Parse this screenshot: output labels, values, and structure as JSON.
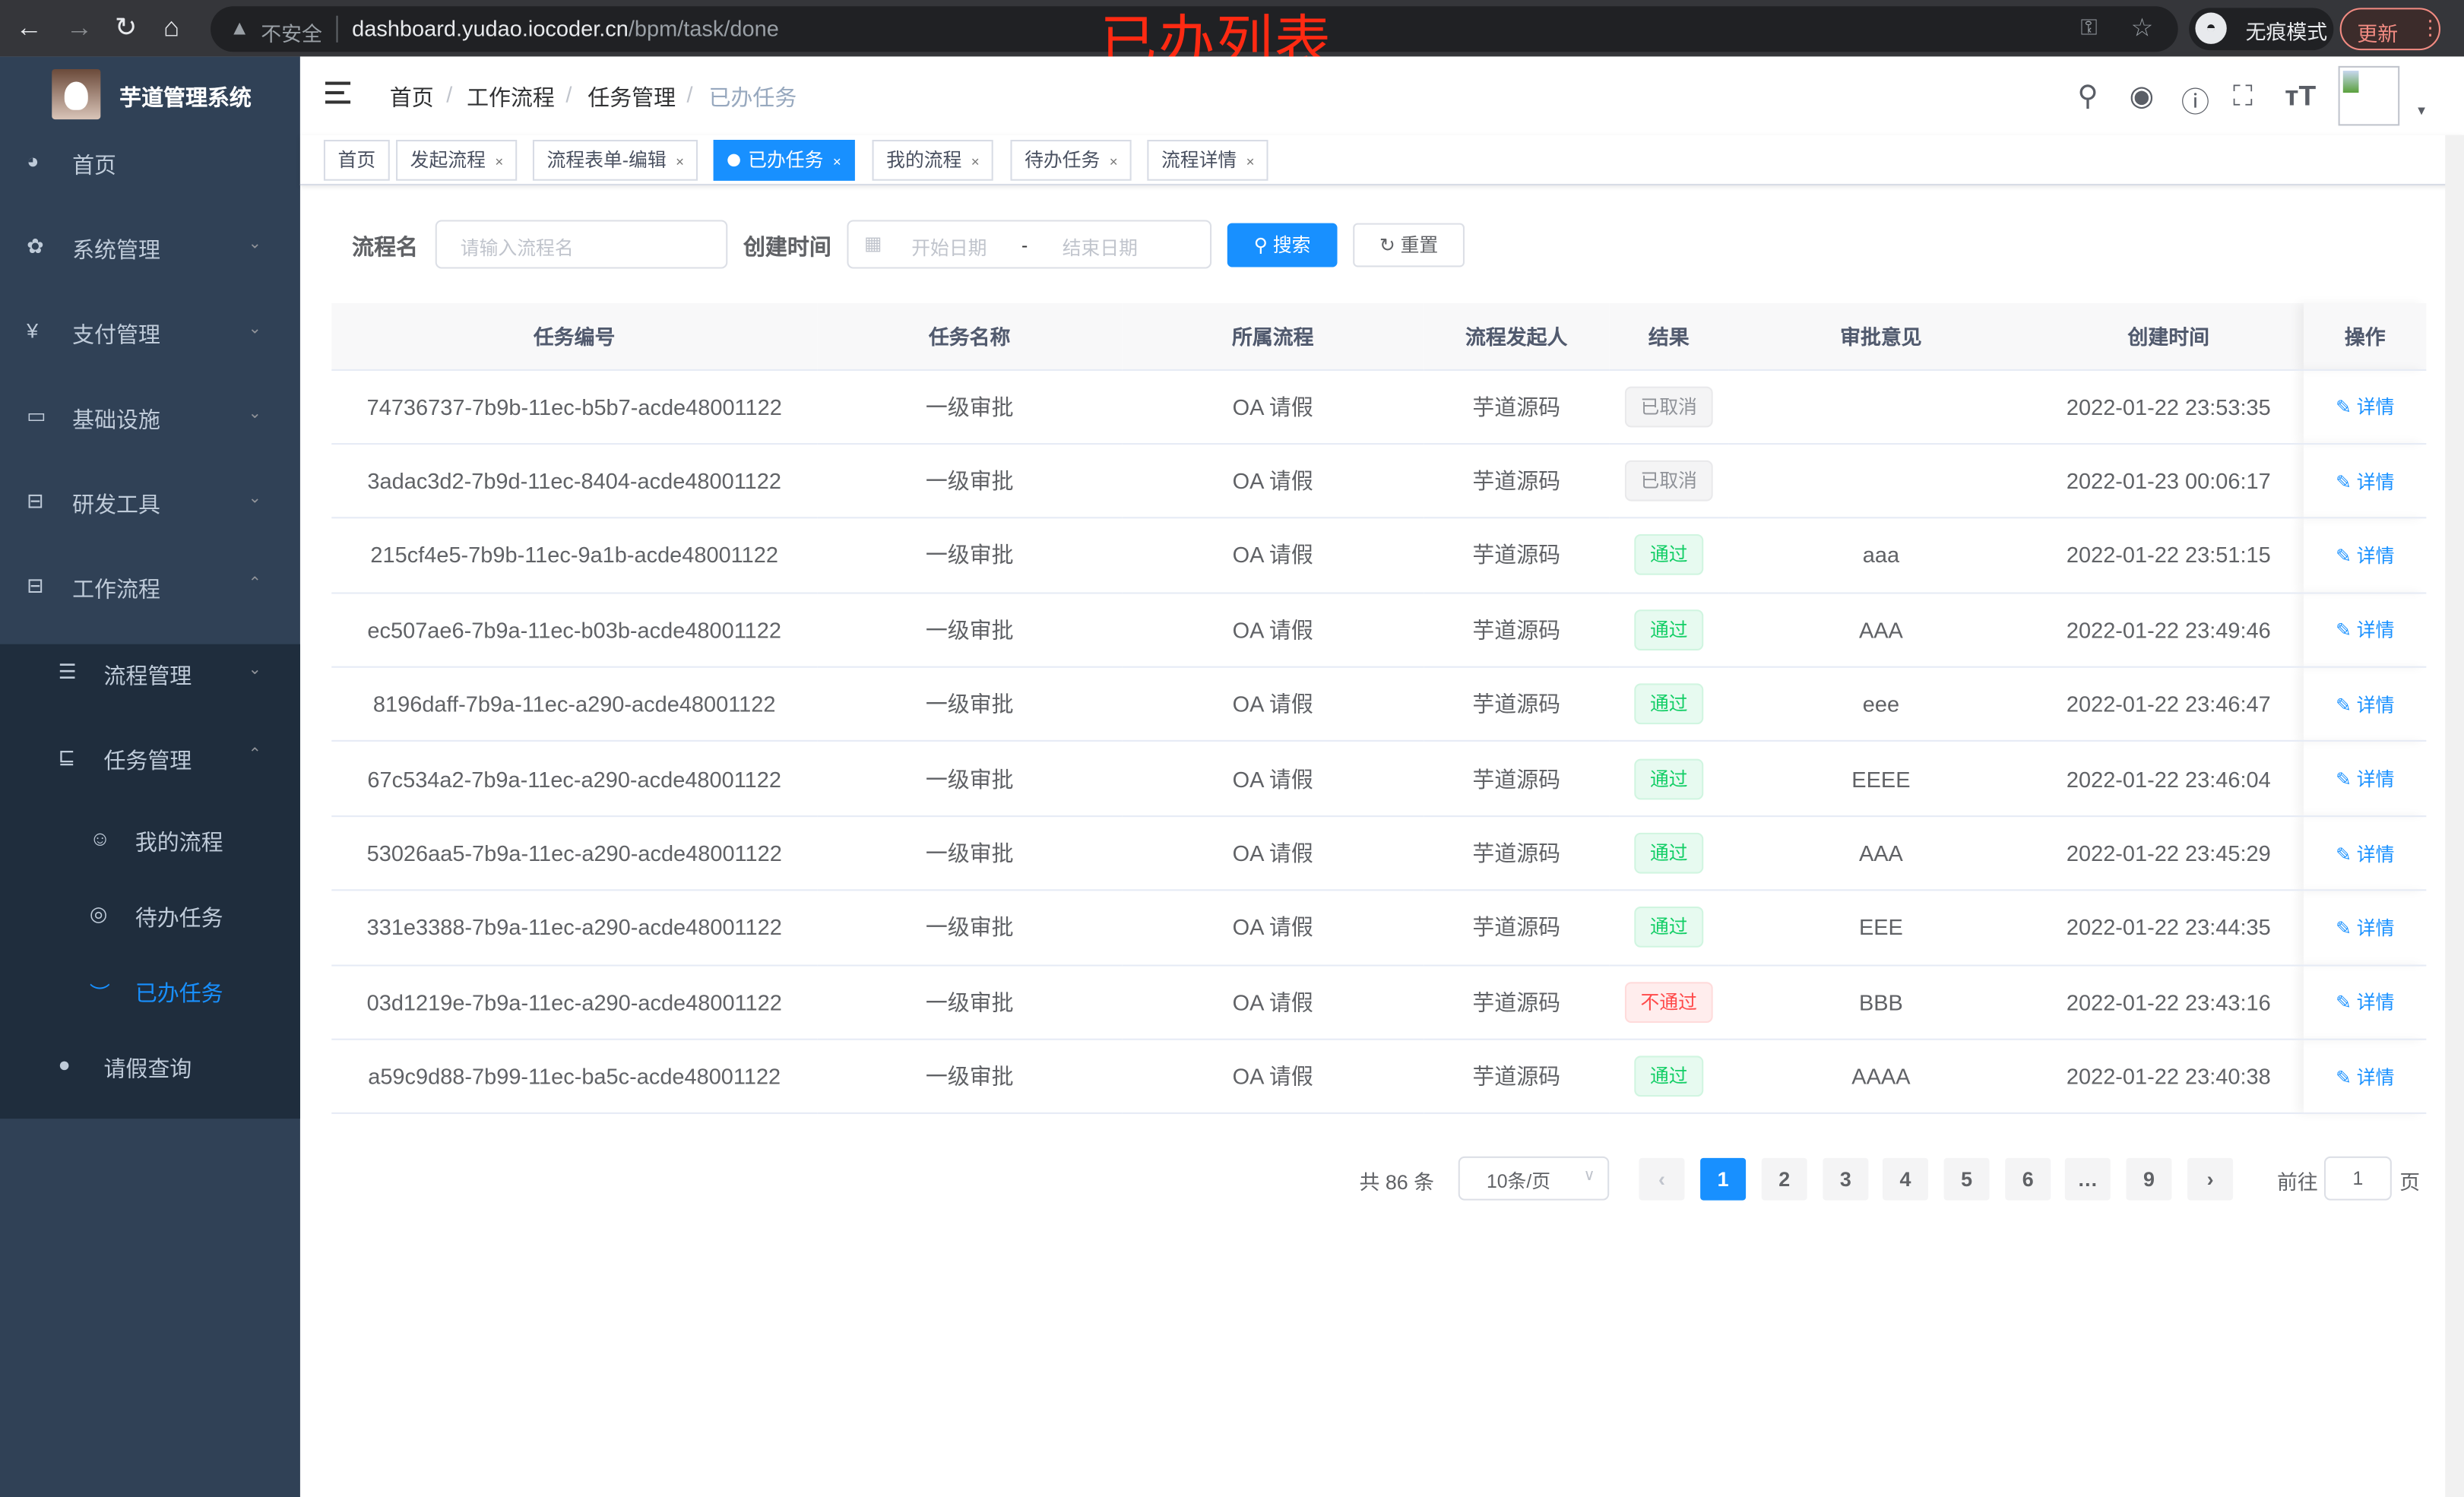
{
  "browser": {
    "insecure_label": "不安全",
    "url_host": "dashboard.yudao.iocoder.cn",
    "url_path": "/bpm/task/done",
    "incognito_label": "无痕模式",
    "update_label": "更新"
  },
  "overlay_title": "已办列表",
  "sidebar": {
    "brand": "芋道管理系统",
    "items": [
      {
        "label": "首页",
        "icon": "dashboard-icon"
      },
      {
        "label": "系统管理",
        "icon": "gear-icon"
      },
      {
        "label": "支付管理",
        "icon": "yen-icon"
      },
      {
        "label": "基础设施",
        "icon": "monitor-icon"
      },
      {
        "label": "研发工具",
        "icon": "toolbox-icon"
      },
      {
        "label": "工作流程",
        "icon": "toolbox-icon"
      },
      {
        "label": "流程管理",
        "icon": "list-icon"
      },
      {
        "label": "任务管理",
        "icon": "task-icon"
      },
      {
        "label": "我的流程",
        "icon": "robot-icon"
      },
      {
        "label": "待办任务",
        "icon": "eye-icon"
      },
      {
        "label": "已办任务",
        "icon": "eye-closed-icon"
      },
      {
        "label": "请假查询",
        "icon": "user-icon"
      }
    ]
  },
  "breadcrumb": [
    "首页",
    "工作流程",
    "任务管理",
    "已办任务"
  ],
  "tags": [
    "首页",
    "发起流程",
    "流程表单-编辑",
    "已办任务",
    "我的流程",
    "待办任务",
    "流程详情"
  ],
  "filters": {
    "name_label": "流程名",
    "name_placeholder": "请输入流程名",
    "time_label": "创建时间",
    "start_placeholder": "开始日期",
    "range_sep": "-",
    "end_placeholder": "结束日期",
    "search_label": "搜索",
    "reset_label": "重置"
  },
  "table": {
    "headers": [
      "任务编号",
      "任务名称",
      "所属流程",
      "流程发起人",
      "结果",
      "审批意见",
      "创建时间",
      "操作"
    ],
    "action_label": "详情",
    "rows": [
      {
        "id": "74736737-7b9b-11ec-b5b7-acde48001122",
        "name": "一级审批",
        "process": "OA 请假",
        "starter": "芋道源码",
        "result": "已取消",
        "status": "cancel",
        "comment": "",
        "time": "2022-01-22 23:53:35"
      },
      {
        "id": "3adac3d2-7b9d-11ec-8404-acde48001122",
        "name": "一级审批",
        "process": "OA 请假",
        "starter": "芋道源码",
        "result": "已取消",
        "status": "cancel",
        "comment": "",
        "time": "2022-01-23 00:06:17"
      },
      {
        "id": "215cf4e5-7b9b-11ec-9a1b-acde48001122",
        "name": "一级审批",
        "process": "OA 请假",
        "starter": "芋道源码",
        "result": "通过",
        "status": "pass",
        "comment": "aaa",
        "time": "2022-01-22 23:51:15"
      },
      {
        "id": "ec507ae6-7b9a-11ec-b03b-acde48001122",
        "name": "一级审批",
        "process": "OA 请假",
        "starter": "芋道源码",
        "result": "通过",
        "status": "pass",
        "comment": "AAA",
        "time": "2022-01-22 23:49:46"
      },
      {
        "id": "8196daff-7b9a-11ec-a290-acde48001122",
        "name": "一级审批",
        "process": "OA 请假",
        "starter": "芋道源码",
        "result": "通过",
        "status": "pass",
        "comment": "eee",
        "time": "2022-01-22 23:46:47"
      },
      {
        "id": "67c534a2-7b9a-11ec-a290-acde48001122",
        "name": "一级审批",
        "process": "OA 请假",
        "starter": "芋道源码",
        "result": "通过",
        "status": "pass",
        "comment": "EEEE",
        "time": "2022-01-22 23:46:04"
      },
      {
        "id": "53026aa5-7b9a-11ec-a290-acde48001122",
        "name": "一级审批",
        "process": "OA 请假",
        "starter": "芋道源码",
        "result": "通过",
        "status": "pass",
        "comment": "AAA",
        "time": "2022-01-22 23:45:29"
      },
      {
        "id": "331e3388-7b9a-11ec-a290-acde48001122",
        "name": "一级审批",
        "process": "OA 请假",
        "starter": "芋道源码",
        "result": "通过",
        "status": "pass",
        "comment": "EEE",
        "time": "2022-01-22 23:44:35"
      },
      {
        "id": "03d1219e-7b9a-11ec-a290-acde48001122",
        "name": "一级审批",
        "process": "OA 请假",
        "starter": "芋道源码",
        "result": "不通过",
        "status": "fail",
        "comment": "BBB",
        "time": "2022-01-22 23:43:16"
      },
      {
        "id": "a59c9d88-7b99-11ec-ba5c-acde48001122",
        "name": "一级审批",
        "process": "OA 请假",
        "starter": "芋道源码",
        "result": "通过",
        "status": "pass",
        "comment": "AAAA",
        "time": "2022-01-22 23:40:38"
      }
    ]
  },
  "pagination": {
    "total_label": "共 86 条",
    "page_size": "10条/页",
    "pages": [
      "1",
      "2",
      "3",
      "4",
      "5",
      "6",
      "…",
      "9"
    ],
    "current": "1",
    "goto_label": "前往",
    "goto_value": "1",
    "page_suffix": "页"
  },
  "colors": {
    "primary": "#1890ff",
    "sidebar": "#304156",
    "submenu": "#1f2d3d",
    "success": "#13ce66",
    "danger": "#ff4949",
    "overlay": "#ff2a12"
  }
}
